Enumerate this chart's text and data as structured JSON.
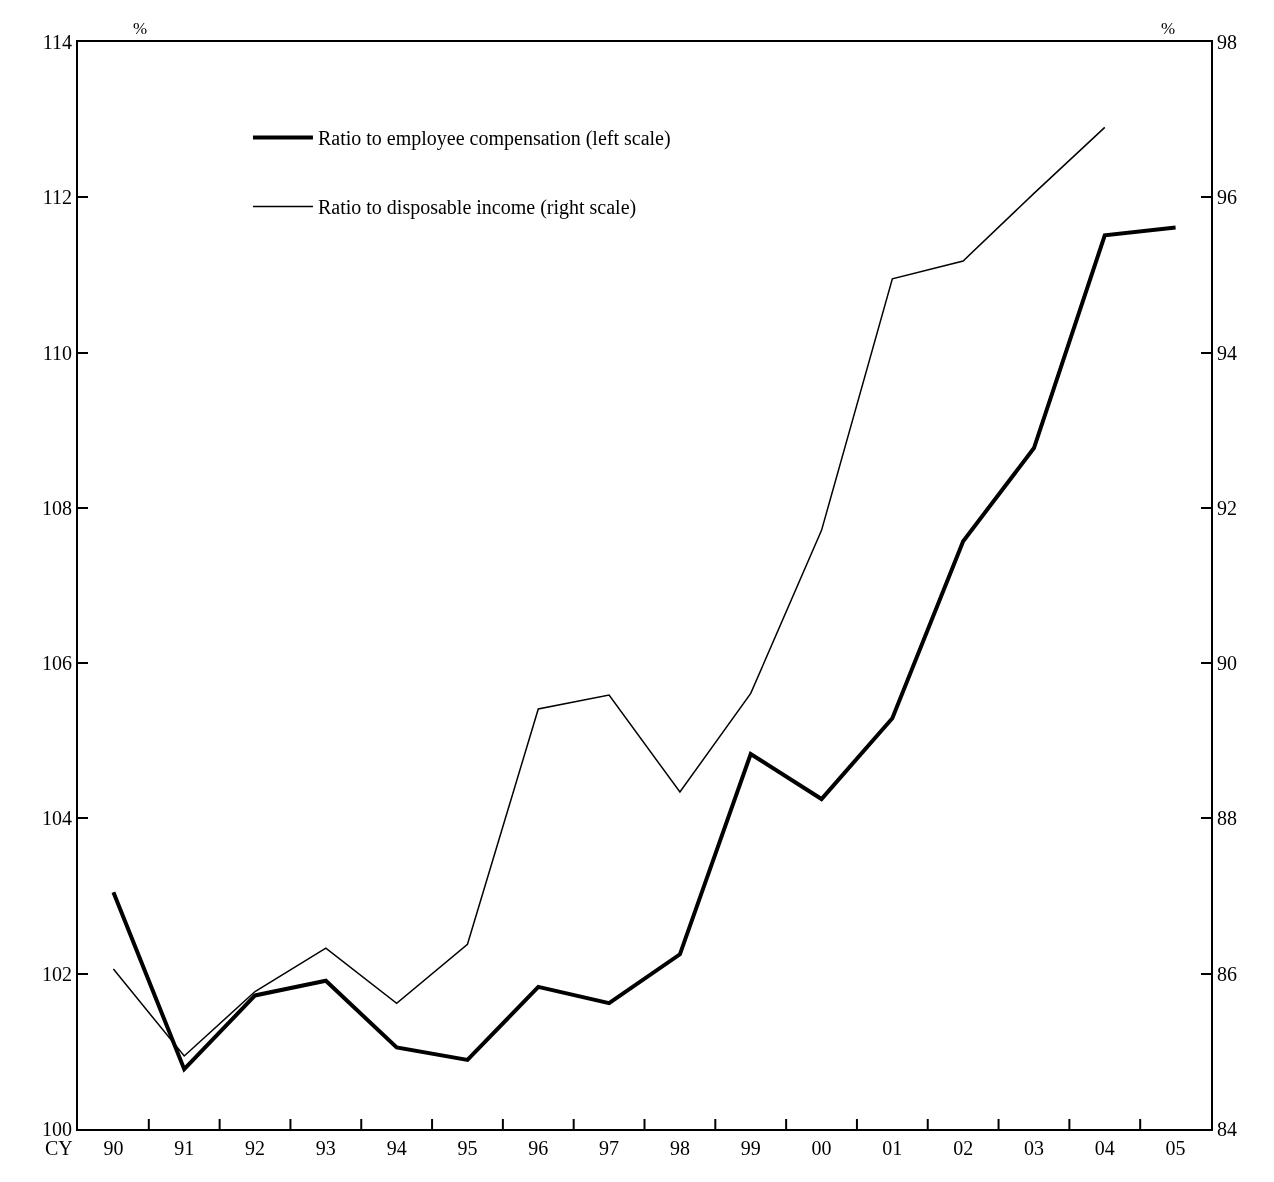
{
  "chart_data": {
    "type": "line",
    "categories": [
      "90",
      "91",
      "92",
      "93",
      "94",
      "95",
      "96",
      "97",
      "98",
      "99",
      "00",
      "01",
      "02",
      "03",
      "04",
      "05"
    ],
    "xlabel": "CY",
    "ylabel": "%",
    "y2label": "%",
    "series": [
      {
        "name": "Ratio to employee compensation (left scale)",
        "color": "#000000",
        "values": [
          103.05,
          100.77,
          101.72,
          101.91,
          101.05,
          100.89,
          101.83,
          101.62,
          102.25,
          104.83,
          104.25,
          105.29,
          107.57,
          108.77,
          111.51,
          111.61
        ]
      },
      {
        "name": "Ratio to disposable income (right scale)",
        "color": "#000000",
        "axis": "y2",
        "values": [
          86.06,
          84.94,
          85.77,
          86.33,
          85.62,
          86.38,
          89.41,
          89.59,
          88.34,
          89.61,
          91.71,
          94.95,
          95.18,
          96.05,
          96.9,
          null
        ]
      }
    ],
    "ylim": [
      100,
      114
    ],
    "yticks": [
      100,
      102,
      104,
      106,
      108,
      110,
      112,
      114
    ],
    "y2lim": [
      84,
      98
    ],
    "y2ticks": [
      84,
      86,
      88,
      90,
      92,
      94,
      96,
      98
    ],
    "legend": "top left",
    "marker": "none",
    "line_style": "solid"
  }
}
